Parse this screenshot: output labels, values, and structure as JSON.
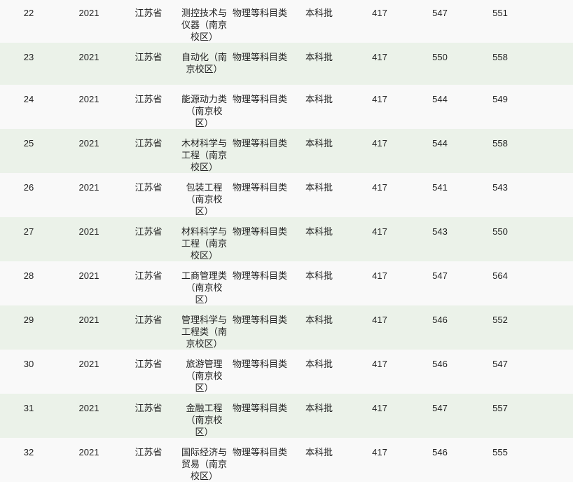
{
  "colors": {
    "row_odd": "#f9f9f9",
    "row_even": "#ebf2e9"
  },
  "rows": [
    {
      "no": "22",
      "year": "2021",
      "province": "江苏省",
      "major": "测控技术与仪器（南京校区）",
      "subject": "物理等科目类",
      "batch": "本科批",
      "control_line": "417",
      "min_score": "547",
      "max_score": "551"
    },
    {
      "no": "23",
      "year": "2021",
      "province": "江苏省",
      "major": "自动化（南京校区）",
      "subject": "物理等科目类",
      "batch": "本科批",
      "control_line": "417",
      "min_score": "550",
      "max_score": "558"
    },
    {
      "no": "24",
      "year": "2021",
      "province": "江苏省",
      "major": "能源动力类（南京校区）",
      "subject": "物理等科目类",
      "batch": "本科批",
      "control_line": "417",
      "min_score": "544",
      "max_score": "549"
    },
    {
      "no": "25",
      "year": "2021",
      "province": "江苏省",
      "major": "木材科学与工程（南京校区）",
      "subject": "物理等科目类",
      "batch": "本科批",
      "control_line": "417",
      "min_score": "544",
      "max_score": "558"
    },
    {
      "no": "26",
      "year": "2021",
      "province": "江苏省",
      "major": "包装工程（南京校区）",
      "subject": "物理等科目类",
      "batch": "本科批",
      "control_line": "417",
      "min_score": "541",
      "max_score": "543"
    },
    {
      "no": "27",
      "year": "2021",
      "province": "江苏省",
      "major": "材料科学与工程（南京校区）",
      "subject": "物理等科目类",
      "batch": "本科批",
      "control_line": "417",
      "min_score": "543",
      "max_score": "550"
    },
    {
      "no": "28",
      "year": "2021",
      "province": "江苏省",
      "major": "工商管理类（南京校区）",
      "subject": "物理等科目类",
      "batch": "本科批",
      "control_line": "417",
      "min_score": "547",
      "max_score": "564"
    },
    {
      "no": "29",
      "year": "2021",
      "province": "江苏省",
      "major": "管理科学与工程类（南京校区）",
      "subject": "物理等科目类",
      "batch": "本科批",
      "control_line": "417",
      "min_score": "546",
      "max_score": "552"
    },
    {
      "no": "30",
      "year": "2021",
      "province": "江苏省",
      "major": "旅游管理（南京校区）",
      "subject": "物理等科目类",
      "batch": "本科批",
      "control_line": "417",
      "min_score": "546",
      "max_score": "547"
    },
    {
      "no": "31",
      "year": "2021",
      "province": "江苏省",
      "major": "金融工程（南京校区）",
      "subject": "物理等科目类",
      "batch": "本科批",
      "control_line": "417",
      "min_score": "547",
      "max_score": "557"
    },
    {
      "no": "32",
      "year": "2021",
      "province": "江苏省",
      "major": "国际经济与贸易（南京校区）",
      "subject": "物理等科目类",
      "batch": "本科批",
      "control_line": "417",
      "min_score": "546",
      "max_score": "555"
    }
  ]
}
